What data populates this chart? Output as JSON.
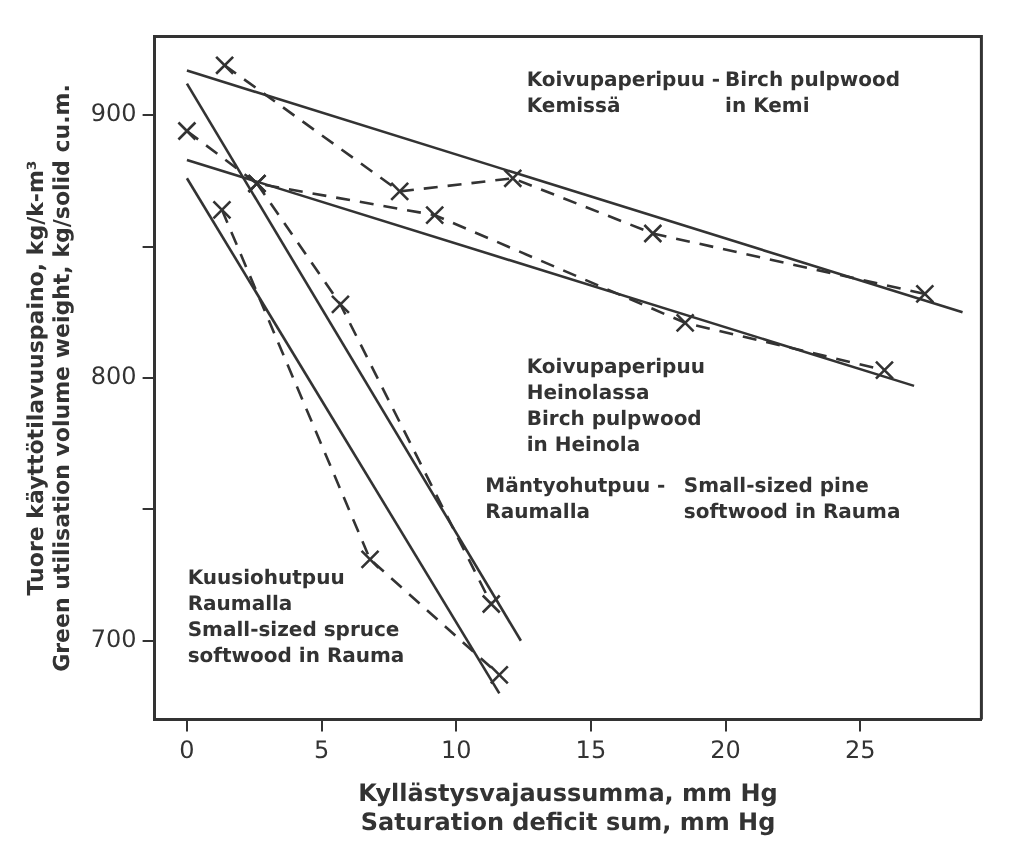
{
  "chart_data": {
    "type": "line",
    "xlabel": "Kyllästysvajaussumma, mm Hg\nSaturation deficit sum, mm Hg",
    "ylabel": "Tuore käyttötilavuuspaino, kg/k-m³\nGreen utilisation volume weight, kg/solid cu.m.",
    "xlim": [
      -1.2,
      29.5
    ],
    "xticks": [
      0,
      5,
      10,
      15,
      20,
      25
    ],
    "ylim": [
      670,
      930
    ],
    "yticks": [
      700,
      {
        "value": 750,
        "label": null
      },
      800,
      {
        "value": 850,
        "label": null
      },
      900
    ],
    "grid": false,
    "legend": false,
    "series": [
      {
        "color": "#333333",
        "x": [
          0,
          28.8
        ],
        "values": [
          917,
          825
        ],
        "line_style": "solid",
        "marker": "none"
      },
      {
        "color": "#333333",
        "x": [
          1.4,
          7.9,
          12.1,
          17.3,
          27.4
        ],
        "values": [
          919,
          871,
          876,
          855,
          832
        ],
        "line_style": "dashed",
        "marker": "cross"
      },
      {
        "color": "#333333",
        "x": [
          0,
          27
        ],
        "values": [
          883,
          797
        ],
        "line_style": "solid",
        "marker": "none"
      },
      {
        "color": "#333333",
        "x": [
          0,
          2.6,
          9.2,
          18.5,
          25.9
        ],
        "values": [
          894,
          874,
          862,
          821,
          803
        ],
        "line_style": "dashed",
        "marker": "cross"
      },
      {
        "color": "#333333",
        "x": [
          0,
          12.4
        ],
        "values": [
          912,
          700
        ],
        "line_style": "solid",
        "marker": "none"
      },
      {
        "color": "#333333",
        "x": [
          2.6,
          5.7,
          11.3
        ],
        "values": [
          874,
          828,
          714
        ],
        "line_style": "dashed",
        "marker": "cross"
      },
      {
        "color": "#333333",
        "x": [
          0,
          11.6
        ],
        "values": [
          876,
          680
        ],
        "line_style": "solid",
        "marker": "none"
      },
      {
        "color": "#333333",
        "x": [
          1.3,
          6.8,
          11.6
        ],
        "values": [
          864,
          731,
          687
        ],
        "line_style": "dashed",
        "marker": "cross"
      }
    ],
    "annotations": [
      "Koivupaperipuu -\nKemissä",
      "Birch pulpwood\nin Kemi",
      "Koivupaperipuu\nHeinolassa\nBirch pulpwood\nin Heinola",
      "Mäntyohutpuu -\nRaumalla",
      "Small-sized pine\nsoftwood in Rauma",
      "Kuusiohutpuu\nRaumalla\nSmall-sized spruce\nsoftwood in Rauma"
    ]
  }
}
